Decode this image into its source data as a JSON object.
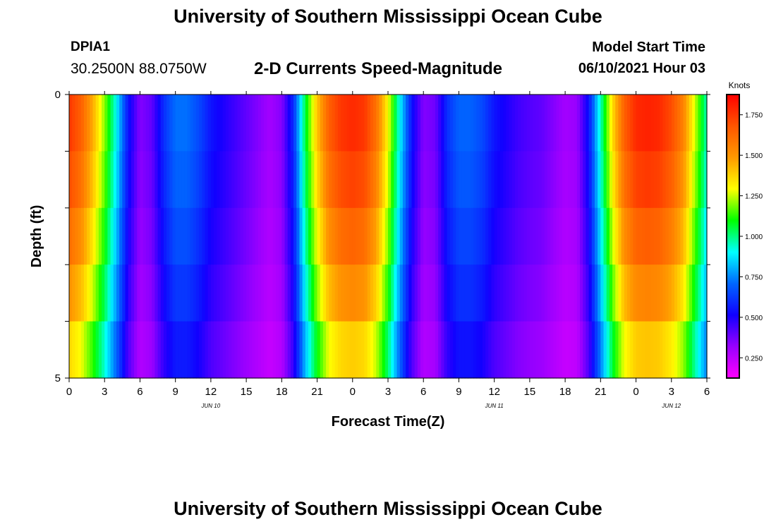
{
  "header": {
    "title": "University of Southern Mississippi Ocean Cube",
    "station_id": "DPIA1",
    "coordinates": "30.2500N  88.0750W",
    "product": "2-D Currents Speed-Magnitude",
    "model_start_label": "Model Start Time",
    "model_start_value": "06/10/2021 Hour 03"
  },
  "footer": {
    "title": "University of Southern Mississippi Ocean Cube"
  },
  "colors": {
    "ramp": [
      "#ff00ff",
      "#9900ff",
      "#1100ff",
      "#0066ff",
      "#00ffff",
      "#00ff00",
      "#ffff00",
      "#ff9900",
      "#ff5500",
      "#ff0000"
    ]
  },
  "chart_data": {
    "type": "heatmap",
    "xlabel": "Forecast Time(Z)",
    "ylabel": "Depth (ft)",
    "colorbar_label": "Knots",
    "x_hours_range": [
      0,
      54
    ],
    "y_range": [
      0,
      5
    ],
    "x_tick_labels": [
      "0",
      "3",
      "6",
      "9",
      "12",
      "15",
      "18",
      "21",
      "0",
      "3",
      "6",
      "9",
      "12",
      "15",
      "18",
      "21",
      "0",
      "3",
      "6"
    ],
    "y_tick_labels": [
      "0",
      "5"
    ],
    "date_labels": [
      {
        "text": "JUN 10",
        "hour": 12
      },
      {
        "text": "JUN 11",
        "hour": 36
      },
      {
        "text": "JUN 12",
        "hour": 51
      }
    ],
    "colorbar_range": [
      0.125,
      1.875
    ],
    "colorbar_ticks": [
      {
        "value": 0.25,
        "label": "0.250"
      },
      {
        "value": 0.5,
        "label": "0.500"
      },
      {
        "value": 0.75,
        "label": "0.750"
      },
      {
        "value": 1.0,
        "label": "1.000"
      },
      {
        "value": 1.25,
        "label": "1.250"
      },
      {
        "value": 1.5,
        "label": "1.500"
      },
      {
        "value": 1.75,
        "label": "1.750"
      }
    ],
    "depth_levels": [
      0.5,
      1.5,
      2.5,
      3.5,
      4.5
    ],
    "depth_factors": [
      1.0,
      0.97,
      0.92,
      0.86,
      0.78
    ],
    "surface_speed_by_hour": [
      1.75,
      1.65,
      1.45,
      1.2,
      0.9,
      0.55,
      0.35,
      0.4,
      0.6,
      0.72,
      0.72,
      0.65,
      0.55,
      0.5,
      0.45,
      0.4,
      0.35,
      0.3,
      0.35,
      0.6,
      1.05,
      1.4,
      1.65,
      1.75,
      1.78,
      1.75,
      1.6,
      1.3,
      0.9,
      0.55,
      0.35,
      0.38,
      0.6,
      0.7,
      0.7,
      0.65,
      0.55,
      0.5,
      0.45,
      0.42,
      0.4,
      0.35,
      0.3,
      0.32,
      0.55,
      0.95,
      1.35,
      1.65,
      1.78,
      1.8,
      1.78,
      1.7,
      1.55,
      1.25,
      0.95
    ]
  }
}
